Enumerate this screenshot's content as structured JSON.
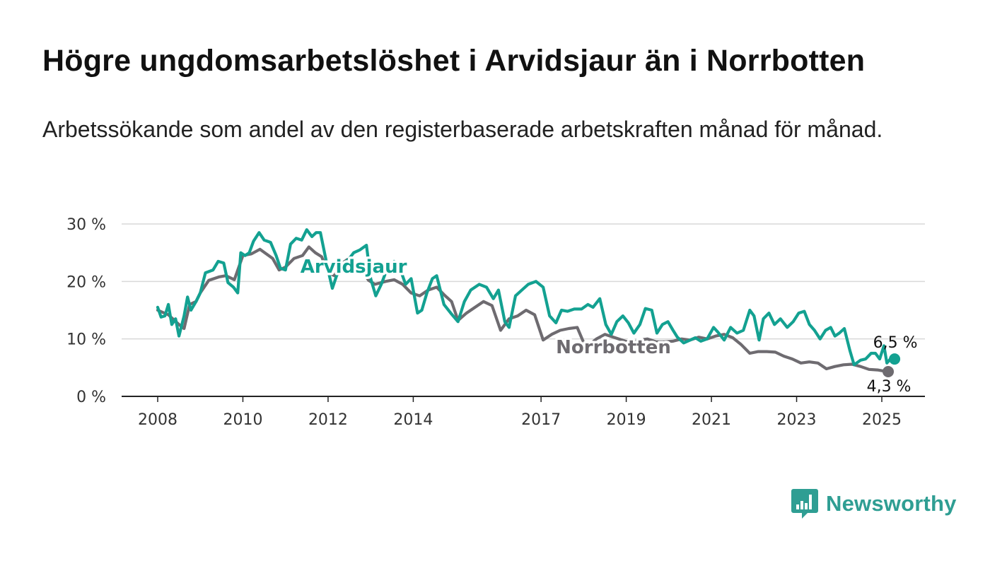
{
  "title": "Högre ungdomsarbetslöshet i Arvidsjaur än i Norrbotten",
  "subtitle": "Arbetssökande som andel av den registerbaserade arbetskraften månad för månad.",
  "brand": {
    "name": "Newsworthy",
    "icon": "bar-chart-speech-bubble-icon",
    "color": "#2f9e93"
  },
  "chart_data": {
    "type": "line",
    "title": "Högre ungdomsarbetslöshet i Arvidsjaur än i Norrbotten",
    "xlabel": "",
    "ylabel": "",
    "x_range": [
      2007.2,
      2026.0
    ],
    "ylim": [
      0,
      30
    ],
    "yticks": [
      0,
      10,
      20,
      30
    ],
    "ytick_labels": [
      "0 %",
      "10 %",
      "20 %",
      "30 %"
    ],
    "xticks": [
      2008,
      2010,
      2012,
      2014,
      2017,
      2019,
      2021,
      2023,
      2025
    ],
    "xtick_labels": [
      "2008",
      "2010",
      "2012",
      "2014",
      "2017",
      "2019",
      "2021",
      "2023",
      "2025"
    ],
    "grid": true,
    "legend": "inline labels",
    "series": [
      {
        "name": "Norrbotten",
        "color": "#6e6b70",
        "end_label": "4,3 %",
        "points": [
          [
            2008.0,
            15.0
          ],
          [
            2008.25,
            14.2
          ],
          [
            2008.5,
            12.5
          ],
          [
            2008.62,
            11.8
          ],
          [
            2008.75,
            16.0
          ],
          [
            2008.9,
            16.5
          ],
          [
            2009.0,
            18.0
          ],
          [
            2009.2,
            20.2
          ],
          [
            2009.45,
            20.8
          ],
          [
            2009.6,
            21.0
          ],
          [
            2009.8,
            20.3
          ],
          [
            2010.0,
            24.5
          ],
          [
            2010.2,
            24.8
          ],
          [
            2010.4,
            25.6
          ],
          [
            2010.55,
            24.8
          ],
          [
            2010.7,
            24.0
          ],
          [
            2010.85,
            22.0
          ],
          [
            2011.0,
            22.5
          ],
          [
            2011.2,
            24.0
          ],
          [
            2011.4,
            24.5
          ],
          [
            2011.55,
            26.0
          ],
          [
            2011.7,
            25.0
          ],
          [
            2011.85,
            24.3
          ],
          [
            2012.0,
            21.5
          ],
          [
            2012.15,
            21.0
          ],
          [
            2012.3,
            23.0
          ],
          [
            2012.45,
            23.8
          ],
          [
            2012.6,
            22.8
          ],
          [
            2012.75,
            22.3
          ],
          [
            2012.95,
            20.2
          ],
          [
            2013.1,
            19.5
          ],
          [
            2013.35,
            20.0
          ],
          [
            2013.55,
            20.3
          ],
          [
            2013.75,
            19.5
          ],
          [
            2013.95,
            18.0
          ],
          [
            2014.15,
            17.5
          ],
          [
            2014.35,
            18.5
          ],
          [
            2014.55,
            19.0
          ],
          [
            2014.75,
            17.5
          ],
          [
            2014.9,
            16.5
          ],
          [
            2015.05,
            13.2
          ],
          [
            2015.25,
            14.5
          ],
          [
            2015.45,
            15.5
          ],
          [
            2015.65,
            16.5
          ],
          [
            2015.85,
            15.8
          ],
          [
            2016.05,
            11.5
          ],
          [
            2016.25,
            13.5
          ],
          [
            2016.45,
            14.0
          ],
          [
            2016.65,
            15.0
          ],
          [
            2016.85,
            14.2
          ],
          [
            2017.05,
            9.8
          ],
          [
            2017.25,
            10.8
          ],
          [
            2017.45,
            11.5
          ],
          [
            2017.65,
            11.8
          ],
          [
            2017.85,
            12.0
          ],
          [
            2018.05,
            8.5
          ],
          [
            2018.3,
            10.0
          ],
          [
            2018.5,
            10.8
          ],
          [
            2018.7,
            10.3
          ],
          [
            2018.9,
            9.8
          ],
          [
            2019.1,
            9.3
          ],
          [
            2019.3,
            9.8
          ],
          [
            2019.5,
            10.0
          ],
          [
            2019.7,
            9.5
          ],
          [
            2019.9,
            9.5
          ],
          [
            2020.1,
            9.6
          ],
          [
            2020.3,
            10.0
          ],
          [
            2020.5,
            9.8
          ],
          [
            2020.7,
            10.3
          ],
          [
            2020.9,
            10.0
          ],
          [
            2021.1,
            10.5
          ],
          [
            2021.3,
            10.8
          ],
          [
            2021.5,
            10.2
          ],
          [
            2021.7,
            9.0
          ],
          [
            2021.9,
            7.5
          ],
          [
            2022.1,
            7.8
          ],
          [
            2022.3,
            7.8
          ],
          [
            2022.5,
            7.7
          ],
          [
            2022.7,
            7.0
          ],
          [
            2022.9,
            6.5
          ],
          [
            2023.1,
            5.8
          ],
          [
            2023.3,
            6.0
          ],
          [
            2023.5,
            5.8
          ],
          [
            2023.7,
            4.8
          ],
          [
            2023.9,
            5.2
          ],
          [
            2024.1,
            5.5
          ],
          [
            2024.3,
            5.6
          ],
          [
            2024.5,
            5.2
          ],
          [
            2024.7,
            4.7
          ],
          [
            2024.9,
            4.6
          ],
          [
            2025.05,
            4.4
          ],
          [
            2025.15,
            4.3
          ]
        ]
      },
      {
        "name": "Arvidsjaur",
        "color": "#13a191",
        "end_label": "6,5 %",
        "points": [
          [
            2008.0,
            15.5
          ],
          [
            2008.08,
            13.8
          ],
          [
            2008.17,
            14.0
          ],
          [
            2008.25,
            16.0
          ],
          [
            2008.33,
            12.5
          ],
          [
            2008.42,
            13.5
          ],
          [
            2008.5,
            10.5
          ],
          [
            2008.62,
            14.0
          ],
          [
            2008.7,
            17.3
          ],
          [
            2008.78,
            15.0
          ],
          [
            2008.9,
            16.5
          ],
          [
            2009.0,
            18.0
          ],
          [
            2009.12,
            21.5
          ],
          [
            2009.3,
            22.0
          ],
          [
            2009.42,
            23.5
          ],
          [
            2009.55,
            23.2
          ],
          [
            2009.65,
            19.8
          ],
          [
            2009.78,
            19.0
          ],
          [
            2009.88,
            18.0
          ],
          [
            2009.95,
            25.0
          ],
          [
            2010.05,
            24.5
          ],
          [
            2010.15,
            25.0
          ],
          [
            2010.25,
            27.0
          ],
          [
            2010.38,
            28.5
          ],
          [
            2010.5,
            27.2
          ],
          [
            2010.65,
            26.8
          ],
          [
            2010.78,
            24.5
          ],
          [
            2010.88,
            22.3
          ],
          [
            2011.0,
            22.0
          ],
          [
            2011.12,
            26.5
          ],
          [
            2011.25,
            27.5
          ],
          [
            2011.38,
            27.2
          ],
          [
            2011.5,
            29.0
          ],
          [
            2011.62,
            27.8
          ],
          [
            2011.72,
            28.5
          ],
          [
            2011.82,
            28.5
          ],
          [
            2012.0,
            22.0
          ],
          [
            2012.1,
            18.8
          ],
          [
            2012.2,
            21.0
          ],
          [
            2012.35,
            23.0
          ],
          [
            2012.5,
            24.0
          ],
          [
            2012.6,
            25.0
          ],
          [
            2012.75,
            25.5
          ],
          [
            2012.9,
            26.3
          ],
          [
            2013.0,
            20.5
          ],
          [
            2013.12,
            17.5
          ],
          [
            2013.25,
            19.5
          ],
          [
            2013.4,
            22.5
          ],
          [
            2013.55,
            23.5
          ],
          [
            2013.7,
            22.0
          ],
          [
            2013.82,
            19.5
          ],
          [
            2013.95,
            20.5
          ],
          [
            2014.1,
            14.5
          ],
          [
            2014.2,
            15.0
          ],
          [
            2014.32,
            18.0
          ],
          [
            2014.45,
            20.5
          ],
          [
            2014.55,
            21.0
          ],
          [
            2014.72,
            16.0
          ],
          [
            2014.88,
            14.5
          ],
          [
            2015.05,
            13.0
          ],
          [
            2015.2,
            16.5
          ],
          [
            2015.35,
            18.5
          ],
          [
            2015.55,
            19.5
          ],
          [
            2015.72,
            19.0
          ],
          [
            2015.88,
            17.0
          ],
          [
            2016.0,
            18.5
          ],
          [
            2016.15,
            13.0
          ],
          [
            2016.25,
            12.0
          ],
          [
            2016.4,
            17.5
          ],
          [
            2016.55,
            18.5
          ],
          [
            2016.7,
            19.5
          ],
          [
            2016.88,
            20.0
          ],
          [
            2017.05,
            19.0
          ],
          [
            2017.2,
            14.0
          ],
          [
            2017.35,
            12.8
          ],
          [
            2017.48,
            15.0
          ],
          [
            2017.62,
            14.8
          ],
          [
            2017.78,
            15.2
          ],
          [
            2017.95,
            15.2
          ],
          [
            2018.1,
            16.0
          ],
          [
            2018.22,
            15.5
          ],
          [
            2018.38,
            17.0
          ],
          [
            2018.52,
            12.5
          ],
          [
            2018.65,
            10.8
          ],
          [
            2018.78,
            13.0
          ],
          [
            2018.92,
            14.0
          ],
          [
            2019.05,
            12.8
          ],
          [
            2019.18,
            11.0
          ],
          [
            2019.32,
            12.5
          ],
          [
            2019.45,
            15.3
          ],
          [
            2019.6,
            15.0
          ],
          [
            2019.72,
            11.0
          ],
          [
            2019.85,
            12.5
          ],
          [
            2019.98,
            13.0
          ],
          [
            2020.1,
            11.5
          ],
          [
            2020.2,
            10.3
          ],
          [
            2020.35,
            9.3
          ],
          [
            2020.5,
            9.8
          ],
          [
            2020.62,
            10.2
          ],
          [
            2020.75,
            9.6
          ],
          [
            2020.9,
            10.0
          ],
          [
            2021.05,
            12.0
          ],
          [
            2021.15,
            11.2
          ],
          [
            2021.3,
            9.8
          ],
          [
            2021.45,
            12.0
          ],
          [
            2021.6,
            11.0
          ],
          [
            2021.75,
            11.5
          ],
          [
            2021.9,
            15.0
          ],
          [
            2022.0,
            14.0
          ],
          [
            2022.12,
            9.8
          ],
          [
            2022.22,
            13.5
          ],
          [
            2022.35,
            14.5
          ],
          [
            2022.48,
            12.5
          ],
          [
            2022.62,
            13.5
          ],
          [
            2022.78,
            12.0
          ],
          [
            2022.92,
            13.0
          ],
          [
            2023.05,
            14.5
          ],
          [
            2023.18,
            14.8
          ],
          [
            2023.3,
            12.5
          ],
          [
            2023.42,
            11.5
          ],
          [
            2023.55,
            10.0
          ],
          [
            2023.68,
            11.5
          ],
          [
            2023.8,
            12.0
          ],
          [
            2023.9,
            10.5
          ],
          [
            2024.0,
            11.0
          ],
          [
            2024.12,
            11.8
          ],
          [
            2024.25,
            8.0
          ],
          [
            2024.35,
            5.5
          ],
          [
            2024.5,
            6.3
          ],
          [
            2024.62,
            6.5
          ],
          [
            2024.75,
            7.5
          ],
          [
            2024.85,
            7.5
          ],
          [
            2024.95,
            6.5
          ],
          [
            2025.05,
            8.8
          ],
          [
            2025.12,
            5.8
          ],
          [
            2025.2,
            6.5
          ],
          [
            2025.3,
            6.5
          ]
        ]
      }
    ],
    "annotations": [
      {
        "text": "Arvidsjaur",
        "series": "Arvidsjaur",
        "x": 2012.6,
        "y": 21.5
      },
      {
        "text": "Norrbotten",
        "series": "Norrbotten",
        "x": 2018.7,
        "y": 7.5
      }
    ]
  }
}
